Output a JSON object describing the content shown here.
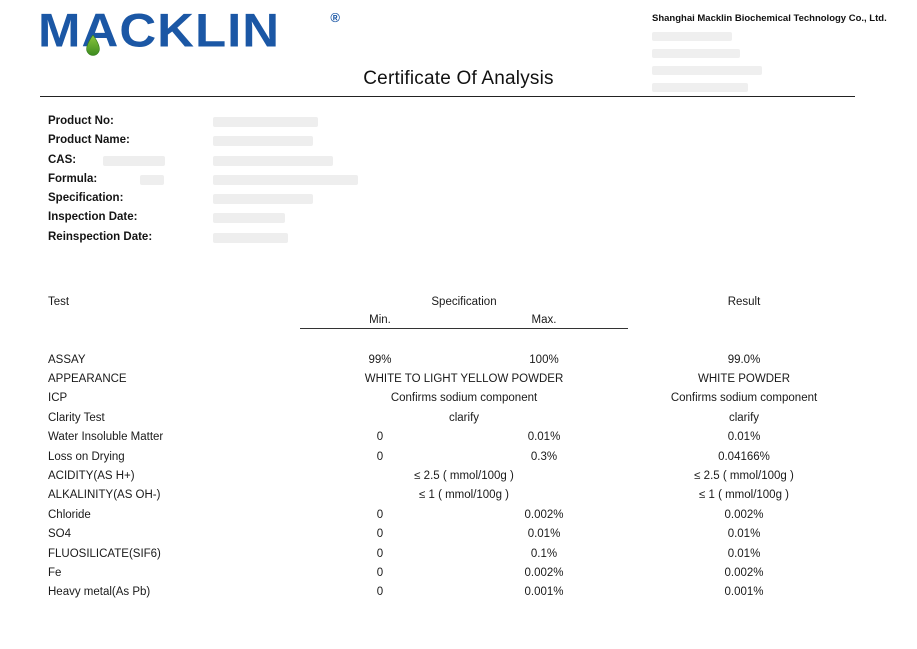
{
  "header": {
    "logo_text": "MACKLIN",
    "registered_mark": "®",
    "company_name": "Shanghai Macklin Biochemical Technology Co., Ltd.",
    "contact_lines_redacted": 4,
    "title": "Certificate Of Analysis"
  },
  "colors": {
    "logo_blue": "#1b57a5",
    "drop_green_light": "#8cc63f",
    "drop_green_dark": "#3d8b1f",
    "text": "#1c1c1c"
  },
  "product_info": {
    "fields": [
      {
        "label": "Product No:",
        "value_redacted": true
      },
      {
        "label": "Product Name:",
        "value_redacted": true
      },
      {
        "label": "CAS:",
        "value_redacted": true
      },
      {
        "label": "Formula:",
        "value_redacted": true
      },
      {
        "label": "Specification:",
        "value_redacted": true
      },
      {
        "label": "Inspection Date:",
        "value_redacted": true
      },
      {
        "label": "Reinspection Date:",
        "value_redacted": true
      }
    ]
  },
  "table": {
    "headers": {
      "test": "Test",
      "specification": "Specification",
      "min": "Min.",
      "max": "Max.",
      "result": "Result"
    },
    "rows": [
      {
        "test": "ASSAY",
        "min": "99%",
        "max": "100%",
        "result": "99.0%"
      },
      {
        "test": "APPEARANCE",
        "spec": "WHITE TO LIGHT YELLOW POWDER",
        "result": "WHITE POWDER"
      },
      {
        "test": "ICP",
        "spec": "Confirms sodium component",
        "result": "Confirms sodium component"
      },
      {
        "test": "Clarity Test",
        "spec": "clarify",
        "result": "clarify"
      },
      {
        "test": "Water Insoluble Matter",
        "min": "0",
        "max": "0.01%",
        "result": "0.01%"
      },
      {
        "test": "Loss on Drying",
        "min": "0",
        "max": "0.3%",
        "result": "0.04166%"
      },
      {
        "test": "ACIDITY(AS H+)",
        "spec": "≤ 2.5 ( mmol/100g )",
        "result": "≤ 2.5 ( mmol/100g )"
      },
      {
        "test": "ALKALINITY(AS OH-)",
        "spec": "≤ 1 ( mmol/100g )",
        "result": "≤ 1 ( mmol/100g )"
      },
      {
        "test": "Chloride",
        "min": "0",
        "max": "0.002%",
        "result": "0.002%"
      },
      {
        "test": "SO4",
        "min": "0",
        "max": "0.01%",
        "result": "0.01%"
      },
      {
        "test": "FLUOSILICATE(SIF6)",
        "min": "0",
        "max": "0.1%",
        "result": "0.01%"
      },
      {
        "test": "Fe",
        "min": "0",
        "max": "0.002%",
        "result": "0.002%"
      },
      {
        "test": "Heavy metal(As Pb)",
        "min": "0",
        "max": "0.001%",
        "result": "0.001%"
      }
    ]
  }
}
